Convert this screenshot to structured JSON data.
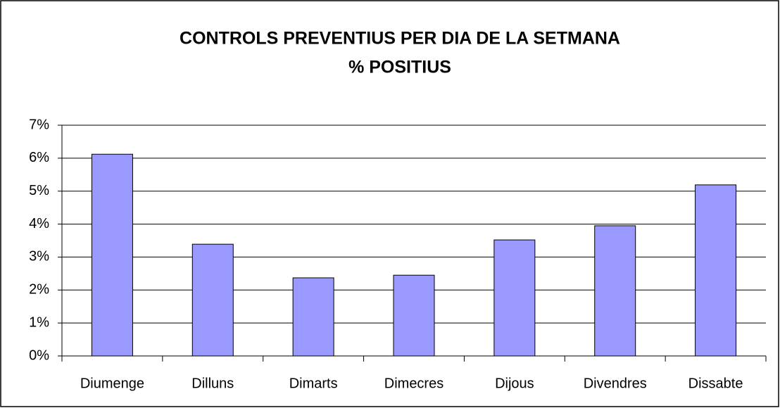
{
  "chart_data": {
    "type": "bar",
    "title": "CONTROLS PREVENTIUS PER DIA DE LA SETMANA",
    "subtitle": "% POSITIUS",
    "categories": [
      "Diumenge",
      "Dilluns",
      "Dimarts",
      "Dimecres",
      "Dijous",
      "Divendres",
      "Dissabte"
    ],
    "values": [
      6.12,
      3.39,
      2.37,
      2.45,
      3.52,
      3.95,
      5.19
    ],
    "color": "#9999ff",
    "ylim": [
      0,
      7
    ],
    "yticks": [
      {
        "value": 0,
        "label": "0%"
      },
      {
        "value": 1,
        "label": "1%"
      },
      {
        "value": 2,
        "label": "2%"
      },
      {
        "value": 3,
        "label": "3%"
      },
      {
        "value": 4,
        "label": "4%"
      },
      {
        "value": 5,
        "label": "5%"
      },
      {
        "value": 6,
        "label": "6%"
      },
      {
        "value": 7,
        "label": "7%"
      }
    ],
    "grid": true
  }
}
